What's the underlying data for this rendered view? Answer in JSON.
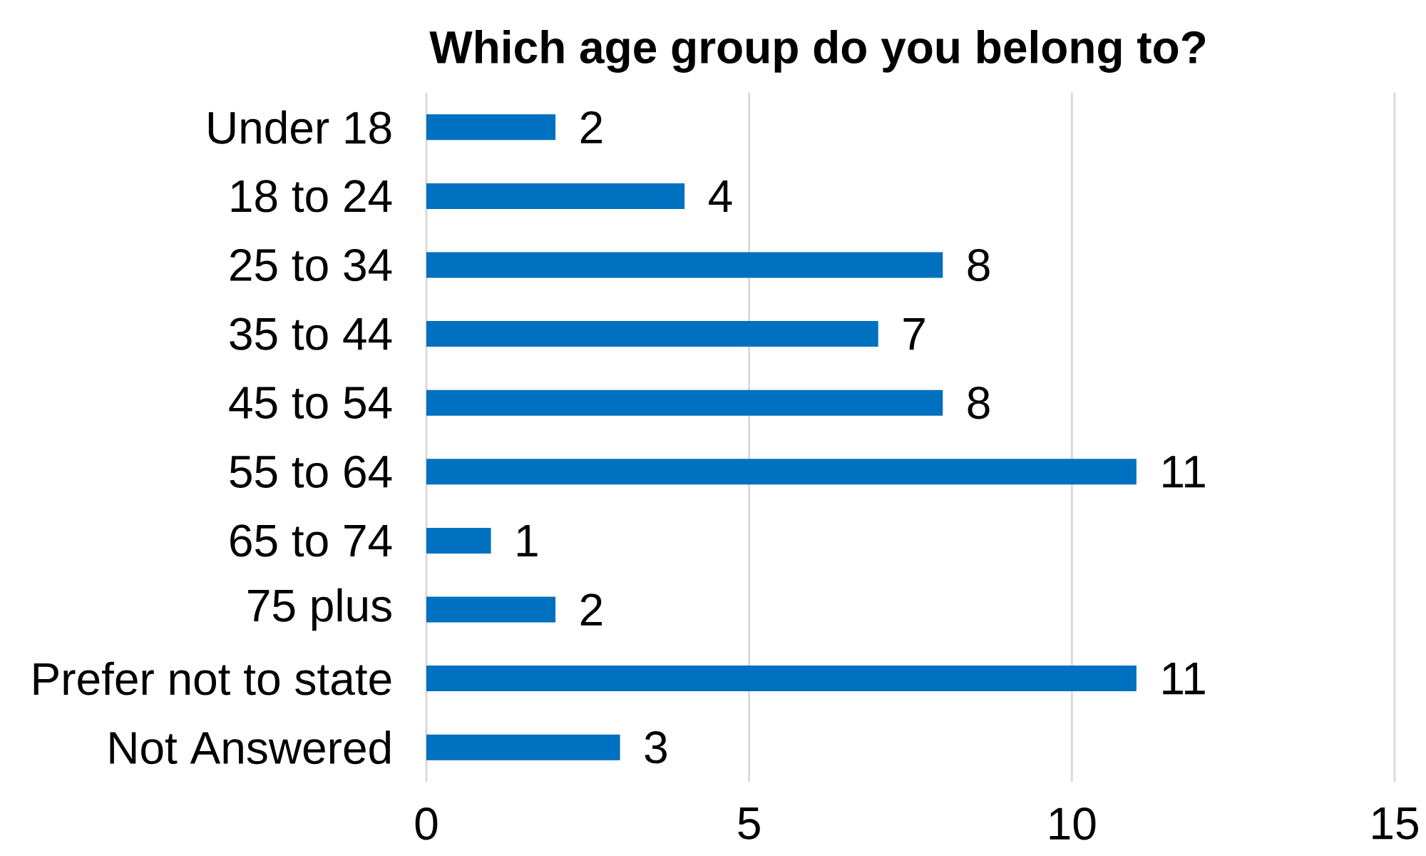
{
  "chart_data": {
    "type": "bar",
    "orientation": "horizontal",
    "title": "Which age group do you belong to?",
    "categories": [
      "Under 18",
      "18 to 24",
      "25 to 34",
      "35 to 44",
      "45 to 54",
      "55 to 64",
      "65 to 74",
      "75 plus",
      "Prefer not to state",
      "Not Answered"
    ],
    "values": [
      2,
      4,
      8,
      7,
      8,
      11,
      1,
      2,
      11,
      3
    ],
    "color": "#0070c0",
    "xlim": [
      0,
      15
    ],
    "xticks": [
      0,
      5,
      10,
      15
    ],
    "grid": "x",
    "data_labels": true
  }
}
